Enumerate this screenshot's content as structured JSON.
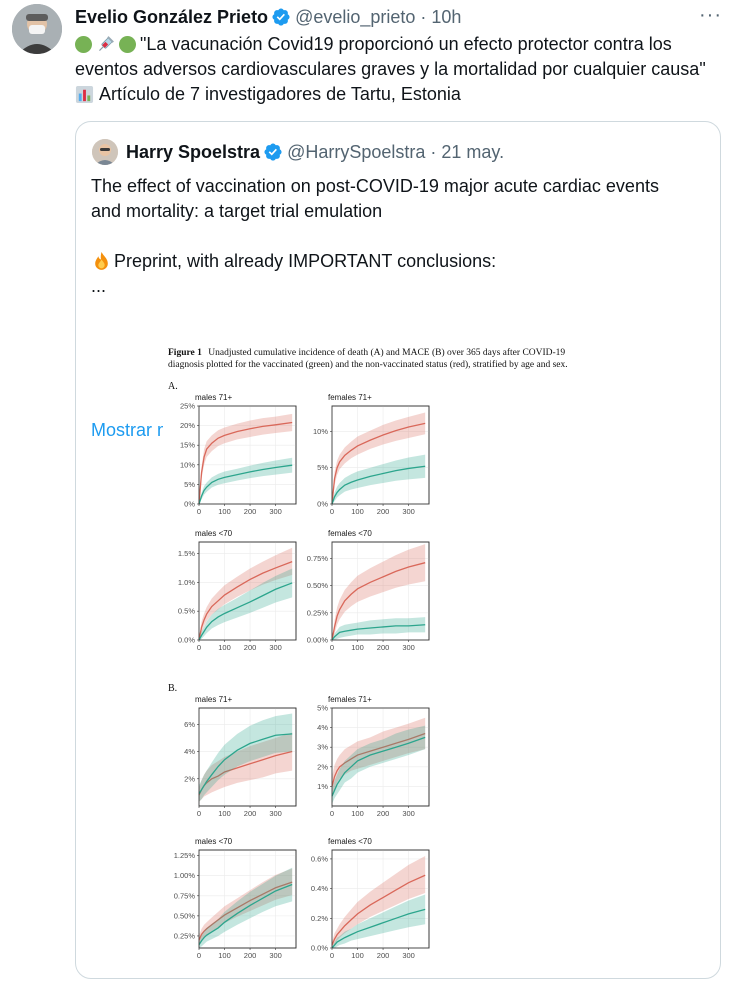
{
  "tweet": {
    "author_name": "Evelio González Prieto",
    "handle": "@evelio_prieto",
    "separator": "·",
    "time": "10h",
    "more_label": "···",
    "text_line1": "\"La vacunación Covid19 proporcionó un efecto protector contra los",
    "text_line2": "eventos adversos cardiovasculares graves y la mortalidad por cualquier causa\"",
    "text_line3": "Artículo de 7 investigadores de Tartu, Estonia",
    "icons": [
      "green-circle-icon",
      "syringe-icon",
      "green-circle-icon",
      "bar-chart-icon",
      "verified-badge-icon",
      "more-icon"
    ]
  },
  "quote": {
    "author_name": "Harry Spoelstra",
    "handle": "@HarrySpoelstra",
    "separator": "·",
    "date": "21 may.",
    "title_line1": "The effect of vaccination on post-COVID-19 major acute cardiac events",
    "title_line2": "and mortality: a target trial emulation",
    "preprint_text": "Preprint, with already IMPORTANT conclusions:",
    "ellipsis": "...",
    "show_more": "Mostrar más",
    "icons": [
      "fire-icon",
      "verified-badge-icon"
    ]
  },
  "figure": {
    "caption_label": "Figure 1",
    "caption_line1": "Unadjusted cumulative incidence of death (A) and MACE (B) over 365 days after COVID-19",
    "caption_line2": "diagnosis plotted for the vaccinated (green) and the non-vaccinated status (red), stratified by age and sex.",
    "section_a": "A.",
    "section_b": "B."
  },
  "colors": {
    "verified": "#1d9bf0",
    "link": "#1d9bf0",
    "muted": "#536471",
    "vaccinated": "#2ca58d",
    "non_vaccinated": "#d9685a"
  },
  "chart_data": [
    {
      "type": "line",
      "section": "A",
      "title": "males 71+",
      "x": [
        0,
        10,
        20,
        30,
        50,
        75,
        100,
        150,
        200,
        250,
        300,
        365
      ],
      "xticks": [
        "0",
        "100",
        "200",
        "300"
      ],
      "yticks": [
        "0%",
        "5%",
        "10%",
        "15%",
        "20%",
        "25%"
      ],
      "ylim": [
        0,
        25
      ],
      "series": [
        {
          "values": [
            0,
            8,
            12,
            14,
            15.5,
            16.8,
            17.5,
            18.5,
            19.2,
            19.8,
            20.2,
            20.8
          ],
          "band_lo": [
            0,
            6.5,
            10,
            12,
            13.5,
            14.8,
            15.5,
            16.5,
            17.1,
            17.7,
            18.1,
            18.6
          ],
          "band_hi": [
            0,
            9.5,
            14,
            16,
            17.5,
            18.8,
            19.5,
            20.5,
            21.3,
            21.9,
            22.3,
            23.0
          ]
        },
        {
          "values": [
            0,
            2,
            3.5,
            4.3,
            5.5,
            6.3,
            6.8,
            7.5,
            8.2,
            8.8,
            9.3,
            9.9
          ],
          "band_lo": [
            0,
            1.2,
            2.4,
            3.1,
            4.2,
            4.9,
            5.3,
            6.0,
            6.6,
            7.1,
            7.5,
            8.0
          ],
          "band_hi": [
            0,
            2.8,
            4.6,
            5.5,
            6.8,
            7.7,
            8.3,
            9.0,
            9.8,
            10.5,
            11.1,
            11.8
          ]
        }
      ]
    },
    {
      "type": "line",
      "section": "A",
      "title": "females 71+",
      "x": [
        0,
        10,
        20,
        30,
        50,
        75,
        100,
        150,
        200,
        250,
        300,
        365
      ],
      "xticks": [
        "0",
        "100",
        "200",
        "300"
      ],
      "yticks": [
        "0%",
        "5%",
        "10%"
      ],
      "ylim": [
        0,
        13.5
      ],
      "series": [
        {
          "values": [
            0,
            3.5,
            5.0,
            5.8,
            6.7,
            7.4,
            8.0,
            8.8,
            9.5,
            10.1,
            10.6,
            11.1
          ],
          "band_lo": [
            0,
            2.6,
            4.0,
            4.8,
            5.6,
            6.3,
            6.8,
            7.6,
            8.2,
            8.7,
            9.1,
            9.6
          ],
          "band_hi": [
            0,
            4.4,
            6.0,
            6.8,
            7.8,
            8.6,
            9.3,
            10.1,
            10.9,
            11.5,
            12.0,
            12.6
          ]
        },
        {
          "values": [
            0,
            1.0,
            1.6,
            2.0,
            2.6,
            3.0,
            3.3,
            3.8,
            4.2,
            4.6,
            4.9,
            5.2
          ],
          "band_lo": [
            0,
            0.4,
            0.9,
            1.2,
            1.7,
            2.0,
            2.2,
            2.6,
            2.9,
            3.2,
            3.4,
            3.6
          ],
          "band_hi": [
            0,
            1.6,
            2.4,
            2.9,
            3.6,
            4.1,
            4.5,
            5.0,
            5.5,
            6.0,
            6.4,
            6.8
          ]
        }
      ]
    },
    {
      "type": "line",
      "section": "A",
      "title": "males <70",
      "x": [
        0,
        10,
        20,
        30,
        50,
        75,
        100,
        150,
        200,
        250,
        300,
        365
      ],
      "xticks": [
        "0",
        "100",
        "200",
        "300"
      ],
      "yticks": [
        "0.0%",
        "0.5%",
        "1.0%",
        "1.5%"
      ],
      "ylim": [
        0,
        1.7
      ],
      "series": [
        {
          "values": [
            0,
            0.22,
            0.35,
            0.45,
            0.58,
            0.68,
            0.78,
            0.92,
            1.05,
            1.16,
            1.25,
            1.36
          ],
          "band_lo": [
            0,
            0.12,
            0.24,
            0.33,
            0.44,
            0.53,
            0.62,
            0.75,
            0.86,
            0.96,
            1.04,
            1.13
          ],
          "band_hi": [
            0,
            0.32,
            0.46,
            0.57,
            0.72,
            0.84,
            0.95,
            1.1,
            1.24,
            1.36,
            1.47,
            1.6
          ]
        },
        {
          "values": [
            0,
            0.08,
            0.15,
            0.22,
            0.32,
            0.4,
            0.46,
            0.56,
            0.66,
            0.77,
            0.88,
            0.99
          ],
          "band_lo": [
            0,
            0.02,
            0.07,
            0.12,
            0.2,
            0.26,
            0.31,
            0.39,
            0.47,
            0.56,
            0.65,
            0.74
          ],
          "band_hi": [
            0,
            0.14,
            0.23,
            0.32,
            0.44,
            0.54,
            0.61,
            0.73,
            0.86,
            0.99,
            1.11,
            1.24
          ]
        }
      ]
    },
    {
      "type": "line",
      "section": "A",
      "title": "females <70",
      "x": [
        0,
        10,
        20,
        30,
        50,
        75,
        100,
        150,
        200,
        250,
        300,
        365
      ],
      "xticks": [
        "0",
        "100",
        "200",
        "300"
      ],
      "yticks": [
        "0.00%",
        "0.25%",
        "0.50%",
        "0.75%"
      ],
      "ylim": [
        0,
        0.9
      ],
      "series": [
        {
          "values": [
            0,
            0.12,
            0.22,
            0.28,
            0.36,
            0.42,
            0.47,
            0.53,
            0.58,
            0.63,
            0.67,
            0.71
          ],
          "band_lo": [
            0,
            0.06,
            0.14,
            0.19,
            0.26,
            0.31,
            0.35,
            0.4,
            0.44,
            0.48,
            0.51,
            0.54
          ],
          "band_hi": [
            0,
            0.18,
            0.3,
            0.37,
            0.46,
            0.53,
            0.59,
            0.66,
            0.72,
            0.78,
            0.83,
            0.88
          ]
        },
        {
          "values": [
            0,
            0.03,
            0.05,
            0.07,
            0.08,
            0.09,
            0.1,
            0.11,
            0.12,
            0.13,
            0.13,
            0.14
          ],
          "band_lo": [
            0,
            0.0,
            0.01,
            0.02,
            0.03,
            0.04,
            0.05,
            0.05,
            0.06,
            0.06,
            0.07,
            0.07
          ],
          "band_hi": [
            0,
            0.06,
            0.09,
            0.12,
            0.14,
            0.15,
            0.16,
            0.18,
            0.19,
            0.2,
            0.2,
            0.21
          ]
        }
      ]
    },
    {
      "type": "line",
      "section": "B",
      "title": "males 71+",
      "x": [
        0,
        10,
        20,
        30,
        50,
        75,
        100,
        150,
        200,
        250,
        300,
        365
      ],
      "xticks": [
        "0",
        "100",
        "200",
        "300"
      ],
      "yticks": [
        "2%",
        "4%",
        "6%"
      ],
      "ylim": [
        0,
        7.2
      ],
      "series": [
        {
          "values": [
            0.8,
            1.2,
            1.5,
            1.7,
            2.0,
            2.2,
            2.5,
            2.8,
            3.1,
            3.4,
            3.7,
            4.0
          ],
          "band_lo": [
            0.3,
            0.5,
            0.7,
            0.8,
            1.0,
            1.2,
            1.4,
            1.7,
            1.9,
            2.1,
            2.4,
            2.6
          ],
          "band_hi": [
            1.3,
            1.9,
            2.3,
            2.6,
            3.0,
            3.3,
            3.6,
            4.0,
            4.4,
            4.7,
            5.0,
            5.4
          ]
        },
        {
          "values": [
            0.9,
            1.2,
            1.5,
            1.8,
            2.3,
            2.9,
            3.4,
            4.1,
            4.6,
            4.9,
            5.2,
            5.3
          ],
          "band_lo": [
            0.3,
            0.5,
            0.8,
            1.0,
            1.4,
            1.9,
            2.3,
            2.9,
            3.3,
            3.6,
            3.9,
            4.0
          ],
          "band_hi": [
            1.5,
            1.9,
            2.3,
            2.6,
            3.2,
            3.9,
            4.5,
            5.3,
            5.9,
            6.3,
            6.6,
            6.8
          ]
        }
      ]
    },
    {
      "type": "line",
      "section": "B",
      "title": "females 71+",
      "x": [
        0,
        10,
        20,
        30,
        50,
        75,
        100,
        150,
        200,
        250,
        300,
        365
      ],
      "xticks": [
        "0",
        "100",
        "200",
        "300"
      ],
      "yticks": [
        "1%",
        "2%",
        "3%",
        "4%",
        "5%"
      ],
      "ylim": [
        0,
        5
      ],
      "series": [
        {
          "values": [
            1.0,
            1.5,
            1.8,
            2.0,
            2.2,
            2.4,
            2.6,
            2.8,
            3.0,
            3.2,
            3.4,
            3.7
          ],
          "band_lo": [
            0.5,
            0.9,
            1.2,
            1.4,
            1.6,
            1.8,
            1.9,
            2.1,
            2.3,
            2.5,
            2.7,
            2.9
          ],
          "band_hi": [
            1.5,
            2.1,
            2.4,
            2.6,
            2.9,
            3.1,
            3.3,
            3.5,
            3.8,
            4.0,
            4.2,
            4.5
          ]
        },
        {
          "values": [
            0.5,
            0.8,
            1.1,
            1.3,
            1.7,
            2.0,
            2.3,
            2.6,
            2.8,
            3.0,
            3.2,
            3.5
          ],
          "band_lo": [
            0.1,
            0.4,
            0.6,
            0.8,
            1.2,
            1.4,
            1.7,
            2.0,
            2.2,
            2.4,
            2.6,
            2.9
          ],
          "band_hi": [
            0.9,
            1.3,
            1.6,
            1.9,
            2.3,
            2.6,
            2.9,
            3.2,
            3.4,
            3.7,
            3.9,
            4.1
          ]
        }
      ]
    },
    {
      "type": "line",
      "section": "B",
      "title": "males <70",
      "x": [
        0,
        10,
        20,
        30,
        50,
        75,
        100,
        150,
        200,
        250,
        300,
        365
      ],
      "xticks": [
        "0",
        "100",
        "200",
        "300"
      ],
      "yticks": [
        "0.25%",
        "0.50%",
        "0.75%",
        "1.00%",
        "1.25%"
      ],
      "ylim": [
        0.1,
        1.32
      ],
      "series": [
        {
          "values": [
            0.2,
            0.27,
            0.31,
            0.34,
            0.39,
            0.45,
            0.51,
            0.6,
            0.69,
            0.77,
            0.85,
            0.92
          ],
          "band_lo": [
            0.14,
            0.2,
            0.24,
            0.27,
            0.31,
            0.36,
            0.41,
            0.49,
            0.56,
            0.63,
            0.7,
            0.76
          ],
          "band_hi": [
            0.26,
            0.34,
            0.39,
            0.42,
            0.48,
            0.55,
            0.62,
            0.72,
            0.82,
            0.92,
            1.01,
            1.09
          ]
        },
        {
          "values": [
            0.14,
            0.19,
            0.23,
            0.26,
            0.3,
            0.35,
            0.42,
            0.53,
            0.63,
            0.72,
            0.81,
            0.89
          ],
          "band_lo": [
            0.1,
            0.12,
            0.15,
            0.18,
            0.21,
            0.25,
            0.3,
            0.39,
            0.47,
            0.55,
            0.62,
            0.68
          ],
          "band_hi": [
            0.18,
            0.26,
            0.31,
            0.35,
            0.4,
            0.46,
            0.55,
            0.68,
            0.8,
            0.9,
            1.0,
            1.1
          ]
        }
      ]
    },
    {
      "type": "line",
      "section": "B",
      "title": "females <70",
      "x": [
        0,
        10,
        20,
        30,
        50,
        75,
        100,
        150,
        200,
        250,
        300,
        365
      ],
      "xticks": [
        "0",
        "100",
        "200",
        "300"
      ],
      "yticks": [
        "0.0%",
        "0.2%",
        "0.4%",
        "0.6%"
      ],
      "ylim": [
        0,
        0.66
      ],
      "series": [
        {
          "values": [
            0.02,
            0.06,
            0.09,
            0.11,
            0.15,
            0.19,
            0.23,
            0.29,
            0.34,
            0.39,
            0.44,
            0.49
          ],
          "band_lo": [
            0,
            0.02,
            0.05,
            0.07,
            0.1,
            0.13,
            0.16,
            0.21,
            0.25,
            0.29,
            0.33,
            0.37
          ],
          "band_hi": [
            0.04,
            0.1,
            0.13,
            0.16,
            0.21,
            0.26,
            0.31,
            0.38,
            0.44,
            0.5,
            0.56,
            0.62
          ]
        },
        {
          "values": [
            0,
            0.02,
            0.04,
            0.05,
            0.07,
            0.09,
            0.11,
            0.14,
            0.17,
            0.2,
            0.23,
            0.26
          ],
          "band_lo": [
            0,
            0.0,
            0.01,
            0.02,
            0.03,
            0.05,
            0.06,
            0.08,
            0.1,
            0.12,
            0.14,
            0.16
          ],
          "band_hi": [
            0.01,
            0.04,
            0.07,
            0.08,
            0.11,
            0.13,
            0.16,
            0.2,
            0.24,
            0.28,
            0.32,
            0.36
          ]
        }
      ]
    }
  ]
}
